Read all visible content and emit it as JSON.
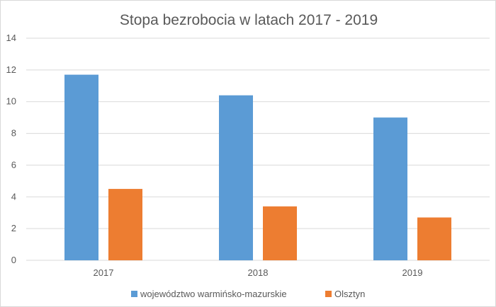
{
  "chart_data": {
    "type": "bar",
    "title": "Stopa bezrobocia w latach 2017 - 2019",
    "categories": [
      "2017",
      "2018",
      "2019"
    ],
    "series": [
      {
        "name": "województwo warmińsko-mazurskie",
        "values": [
          11.7,
          10.4,
          9.0
        ],
        "color": "#5b9bd5"
      },
      {
        "name": "Olsztyn",
        "values": [
          4.5,
          3.4,
          2.7
        ],
        "color": "#ed7d31"
      }
    ],
    "ylim": [
      0,
      14
    ],
    "yticks": [
      "0",
      "2",
      "4",
      "6",
      "8",
      "10",
      "12",
      "14"
    ],
    "grid": true,
    "legend_position": "bottom"
  }
}
